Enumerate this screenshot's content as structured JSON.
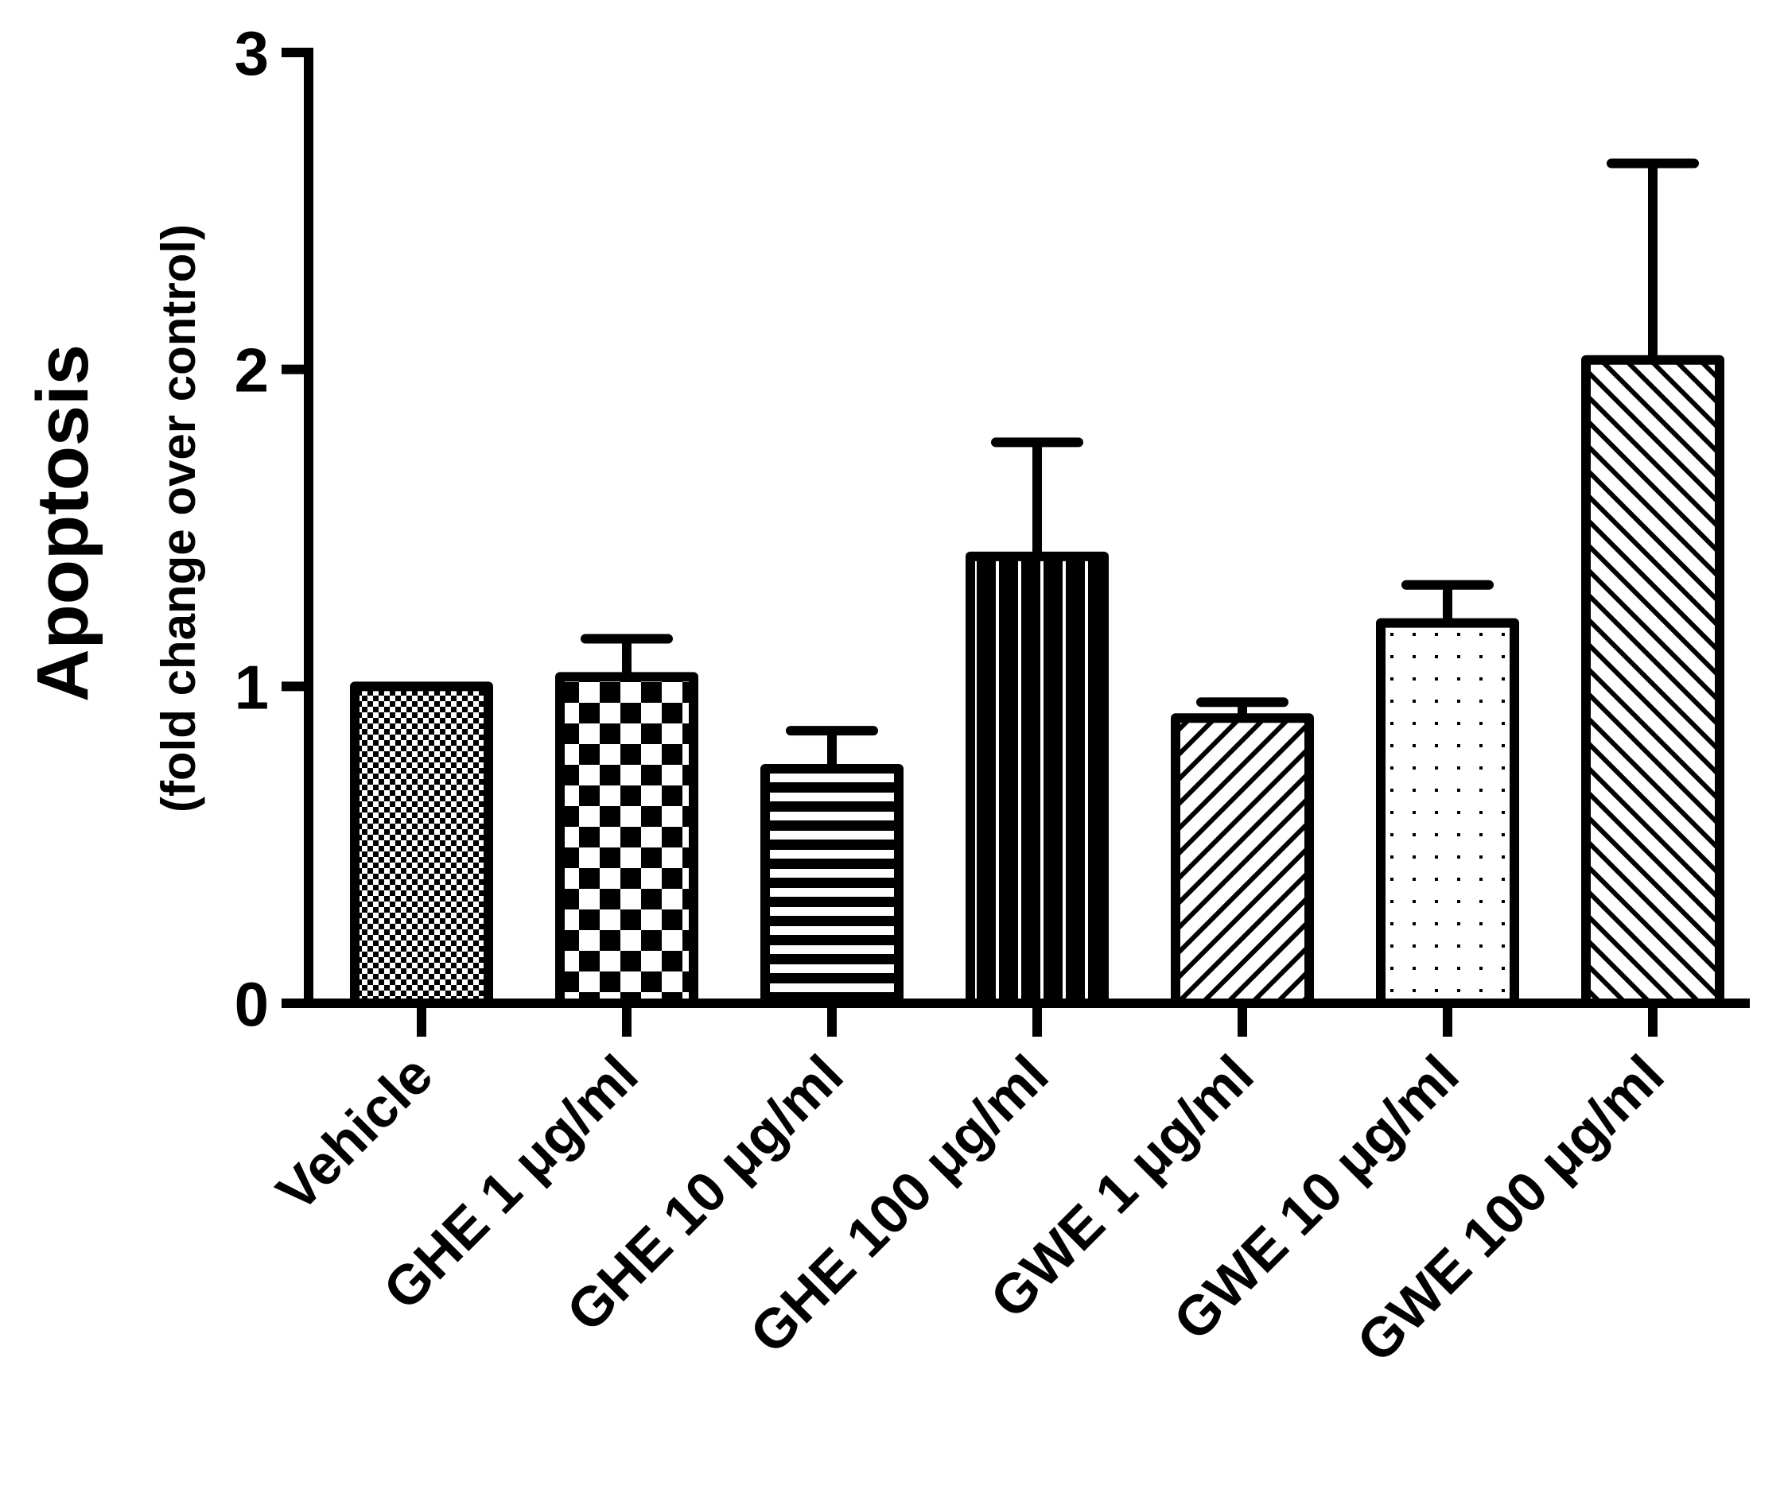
{
  "chart_data": {
    "type": "bar",
    "title": "",
    "xlabel": "",
    "ylabel": "Apoptosis",
    "ylabel_sub": "(fold change over control)",
    "ylim": [
      0,
      3
    ],
    "yticks": [
      "0",
      "1",
      "2",
      "3"
    ],
    "grid": false,
    "categories": [
      "Vehicle",
      "GHE 1 μg/ml",
      "GHE 10 μg/ml",
      "GHE 100 μg/ml",
      "GWE 1 μg/ml",
      "GWE 10 μg/ml",
      "GWE 100 μg/ml"
    ],
    "values": [
      1.0,
      1.03,
      0.74,
      1.41,
      0.9,
      1.2,
      2.03
    ],
    "errors": [
      0.0,
      0.12,
      0.12,
      0.36,
      0.05,
      0.12,
      0.62
    ],
    "patterns": [
      "fine-checker",
      "coarse-checker",
      "horizontal-lines",
      "vertical-lines",
      "diagonal-ne",
      "dots",
      "diagonal-nw"
    ]
  }
}
